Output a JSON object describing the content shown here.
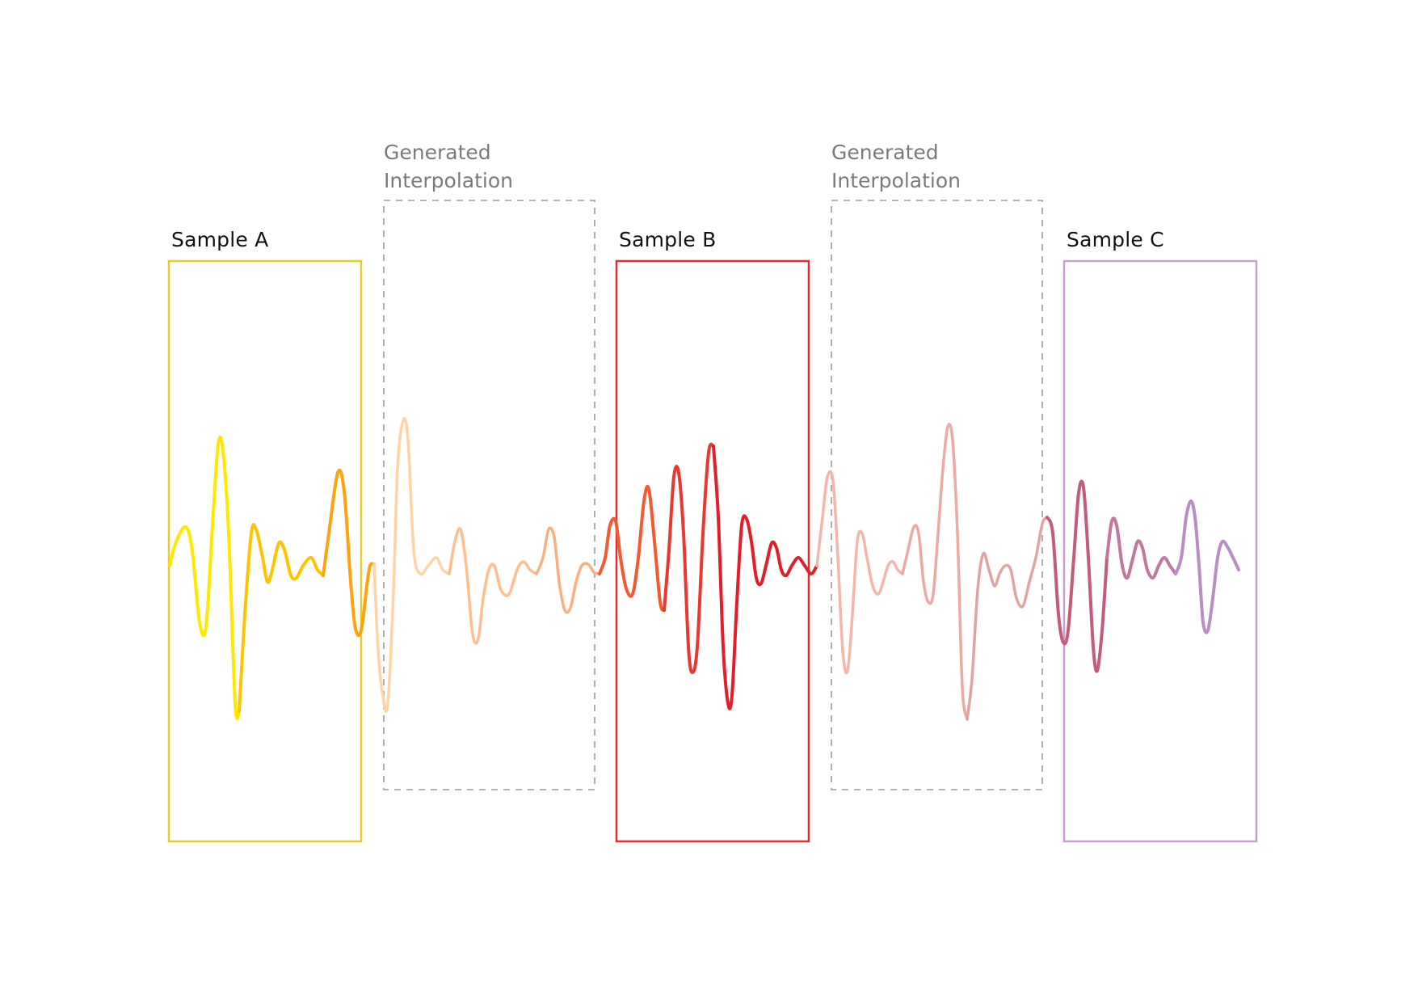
{
  "samples": [
    {
      "label": "Sample A",
      "color": "#e6cc2a"
    },
    {
      "label": "Sample B",
      "color": "#e42a2f"
    },
    {
      "label": "Sample C",
      "color": "#c79fcd"
    }
  ],
  "interpolations": [
    {
      "line1": "Generated",
      "line2": "Interpolation",
      "color": "#9a9a9a"
    },
    {
      "line1": "Generated",
      "line2": "Interpolation",
      "color": "#9a9a9a"
    }
  ],
  "waveform_colors": {
    "sample_a": [
      "#ffe800",
      "#ffc400",
      "#ffa20f"
    ],
    "interp_1": [
      "#ffd3a3",
      "#ffbe8d",
      "#f9b080"
    ],
    "sample_b": [
      "#f25a30",
      "#e8382f",
      "#e21e2a"
    ],
    "interp_2": [
      "#f4b6ab",
      "#ebaaa2",
      "#dfa5a0"
    ],
    "sample_c": [
      "#c45a7c",
      "#c276a0",
      "#b98ec2"
    ]
  }
}
